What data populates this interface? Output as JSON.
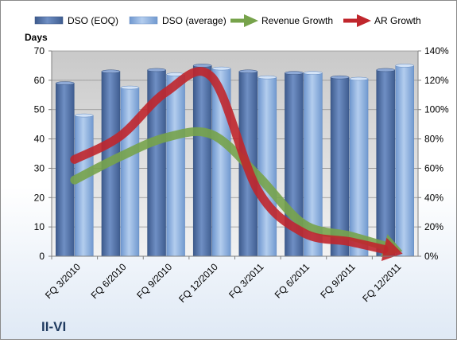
{
  "chart_data": {
    "type": "bar",
    "categories": [
      "FQ 3/2010",
      "FQ 6/2010",
      "FQ 9/2010",
      "FQ 12/2010",
      "FQ 3/2011",
      "FQ 6/2011",
      "FQ 9/2011",
      "FQ 12/2011"
    ],
    "series": [
      {
        "name": "DSO (EOQ)",
        "axis": "left",
        "kind": "bar",
        "color": "#4f6fa6",
        "values": [
          59,
          63,
          63.5,
          65,
          63,
          62.5,
          61,
          63.5
        ]
      },
      {
        "name": "DSO (average)",
        "axis": "left",
        "kind": "bar",
        "color": "#8db3e2",
        "values": [
          48,
          57.5,
          62,
          64,
          61,
          62.5,
          60.5,
          65
        ]
      },
      {
        "name": "Revenue Growth",
        "axis": "right",
        "kind": "arrow-line",
        "color": "#77a34b",
        "values": [
          0.52,
          0.68,
          0.81,
          0.83,
          0.55,
          0.22,
          0.14,
          0.05
        ]
      },
      {
        "name": "AR Growth",
        "axis": "right",
        "kind": "arrow-line",
        "color": "#c0262c",
        "values": [
          0.66,
          0.82,
          1.12,
          1.22,
          0.45,
          0.16,
          0.1,
          0.03
        ]
      }
    ],
    "ylabel": "Days",
    "ylim": [
      0,
      70
    ],
    "yticks": [
      "0",
      "10",
      "20",
      "30",
      "40",
      "50",
      "60",
      "70"
    ],
    "y2lim": [
      0,
      1.4
    ],
    "y2ticks": [
      "0%",
      "20%",
      "40%",
      "60%",
      "80%",
      "100%",
      "120%",
      "140%"
    ],
    "grid": true,
    "legend_position": "top",
    "plot_background": "#c8c8c8"
  },
  "brand_label": "II-VI"
}
